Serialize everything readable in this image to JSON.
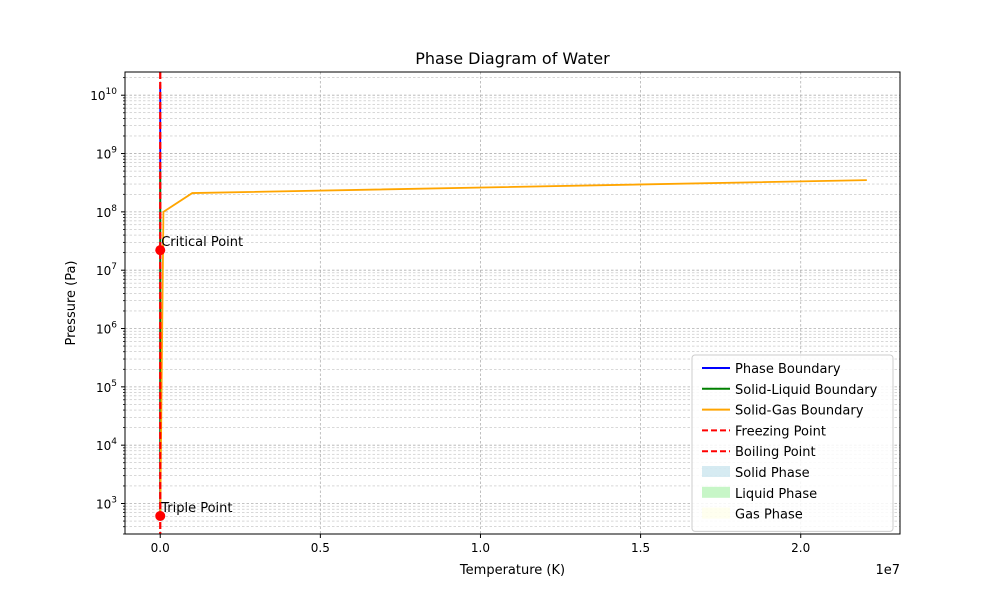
{
  "chart_data": {
    "type": "line",
    "title": "Phase Diagram of Water",
    "xlabel": "Temperature (K)",
    "ylabel": "Pressure (Pa)",
    "x_offset_label": "1e7",
    "xlim": [
      -1100000,
      23100000
    ],
    "ylim": [
      300,
      25000000000
    ],
    "yscale": "log",
    "x_ticks": [
      {
        "value": 0,
        "label": "0.0"
      },
      {
        "value": 5000000,
        "label": "0.5"
      },
      {
        "value": 10000000,
        "label": "1.0"
      },
      {
        "value": 15000000,
        "label": "1.5"
      },
      {
        "value": 20000000,
        "label": "2.0"
      }
    ],
    "y_ticks": [
      {
        "exp": 3
      },
      {
        "exp": 4
      },
      {
        "exp": 5
      },
      {
        "exp": 6
      },
      {
        "exp": 7
      },
      {
        "exp": 8
      },
      {
        "exp": 9
      },
      {
        "exp": 10
      }
    ],
    "grid": true,
    "legend_position": "lower-right",
    "series": [
      {
        "name": "Phase Boundary",
        "color": "#0000ff",
        "style": "solid",
        "x": [
          273.16,
          647.1
        ],
        "y": [
          611.657,
          15000000000
        ]
      },
      {
        "name": "Solid-Liquid Boundary",
        "color": "#008000",
        "style": "solid",
        "x": [
          273.16,
          273.15
        ],
        "y": [
          611.657,
          500000000
        ]
      },
      {
        "name": "Solid-Gas Boundary",
        "color": "#ffa500",
        "style": "solid",
        "x": [
          273.16,
          100000,
          1000000,
          22064000
        ],
        "y": [
          611.657,
          100000000,
          210000000,
          350000000
        ]
      },
      {
        "name": "Freezing Point",
        "color": "#ff0000",
        "style": "dashed",
        "orientation": "vertical",
        "value": 273.15
      },
      {
        "name": "Boiling Point",
        "color": "#ff0000",
        "style": "dashed",
        "orientation": "vertical",
        "value": 373.15
      }
    ],
    "regions": [
      {
        "name": "Solid Phase",
        "color": "#add8e6",
        "opacity": 0.5
      },
      {
        "name": "Liquid Phase",
        "color": "#90ee90",
        "opacity": 0.5
      },
      {
        "name": "Gas Phase",
        "color": "#ffffe0",
        "opacity": 0.5
      }
    ],
    "points": [
      {
        "label": "Critical Point",
        "x": 647.1,
        "y": 22064000,
        "color": "#ff0000"
      },
      {
        "label": "Triple Point",
        "x": 273.16,
        "y": 611.657,
        "color": "#ff0000"
      }
    ]
  }
}
